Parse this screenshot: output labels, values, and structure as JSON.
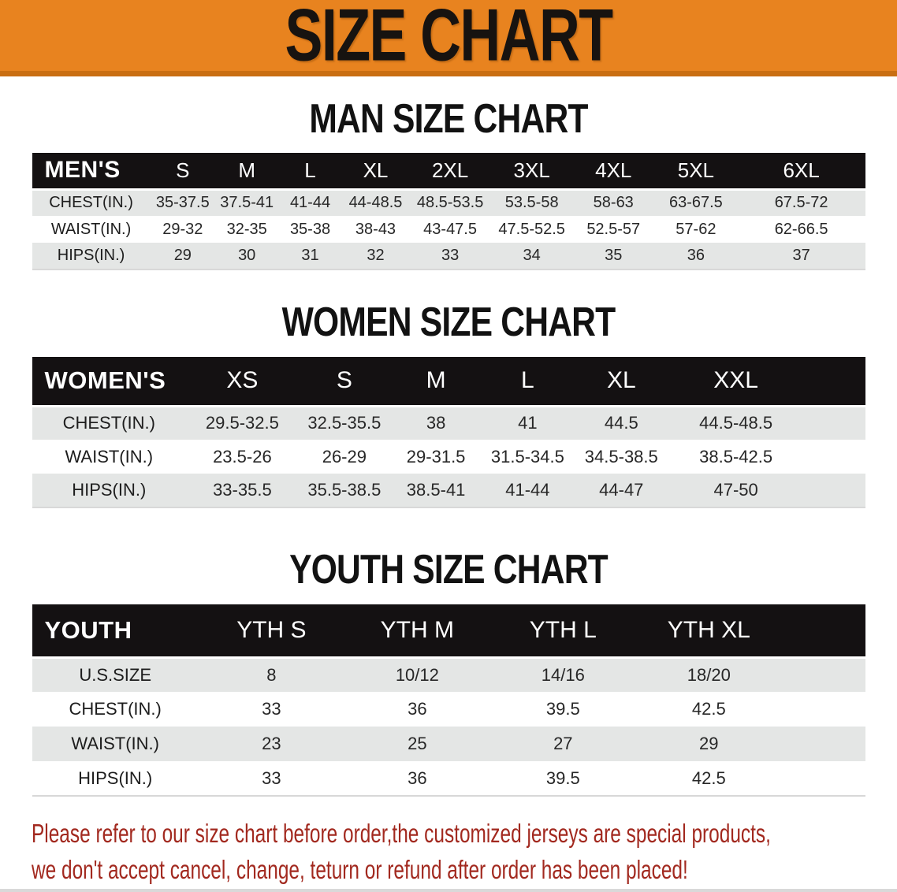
{
  "banner": {
    "title": "SIZE CHART",
    "bg_color": "#E8831F",
    "text_color": "#171310"
  },
  "sections": [
    {
      "heading": "MAN SIZE CHART",
      "table": {
        "header_label": "MEN'S",
        "columns": [
          "S",
          "M",
          "L",
          "XL",
          "2XL",
          "3XL",
          "4XL",
          "5XL",
          "6XL"
        ],
        "rows": [
          {
            "label": "CHEST(IN.)",
            "values": [
              "35-37.5",
              "37.5-41",
              "41-44",
              "44-48.5",
              "48.5-53.5",
              "53.5-58",
              "58-63",
              "63-67.5",
              "67.5-72"
            ]
          },
          {
            "label": "WAIST(IN.)",
            "values": [
              "29-32",
              "32-35",
              "35-38",
              "38-43",
              "43-47.5",
              "47.5-52.5",
              "52.5-57",
              "57-62",
              "62-66.5"
            ]
          },
          {
            "label": "HIPS(IN.)",
            "values": [
              "29",
              "30",
              "31",
              "32",
              "33",
              "34",
              "35",
              "36",
              "37"
            ]
          }
        ]
      }
    },
    {
      "heading": "WOMEN SIZE CHART",
      "table": {
        "header_label": "WOMEN'S",
        "columns": [
          "XS",
          "S",
          "M",
          "L",
          "XL",
          "XXL"
        ],
        "rows": [
          {
            "label": "CHEST(IN.)",
            "values": [
              "29.5-32.5",
              "32.5-35.5",
              "38",
              "41",
              "44.5",
              "44.5-48.5"
            ]
          },
          {
            "label": "WAIST(IN.)",
            "values": [
              "23.5-26",
              "26-29",
              "29-31.5",
              "31.5-34.5",
              "34.5-38.5",
              "38.5-42.5"
            ]
          },
          {
            "label": "HIPS(IN.)",
            "values": [
              "33-35.5",
              "35.5-38.5",
              "38.5-41",
              "41-44",
              "44-47",
              "47-50"
            ]
          }
        ]
      }
    },
    {
      "heading": "YOUTH SIZE CHART",
      "table": {
        "header_label": "YOUTH",
        "columns": [
          "YTH S",
          "YTH M",
          "YTH L",
          "YTH XL"
        ],
        "rows": [
          {
            "label": "U.S.SIZE",
            "values": [
              "8",
              "10/12",
              "14/16",
              "18/20"
            ]
          },
          {
            "label": "CHEST(IN.)",
            "values": [
              "33",
              "36",
              "39.5",
              "42.5"
            ]
          },
          {
            "label": "WAIST(IN.)",
            "values": [
              "23",
              "25",
              "27",
              "29"
            ]
          },
          {
            "label": "HIPS(IN.)",
            "values": [
              "33",
              "36",
              "39.5",
              "42.5"
            ]
          }
        ]
      }
    }
  ],
  "disclaimer": {
    "lines": [
      "Please refer to our size chart before order,the customized jerseys are special products,",
      "we don't accept cancel, change, teturn or refund after order has been placed!"
    ],
    "color": "#A2291F"
  }
}
